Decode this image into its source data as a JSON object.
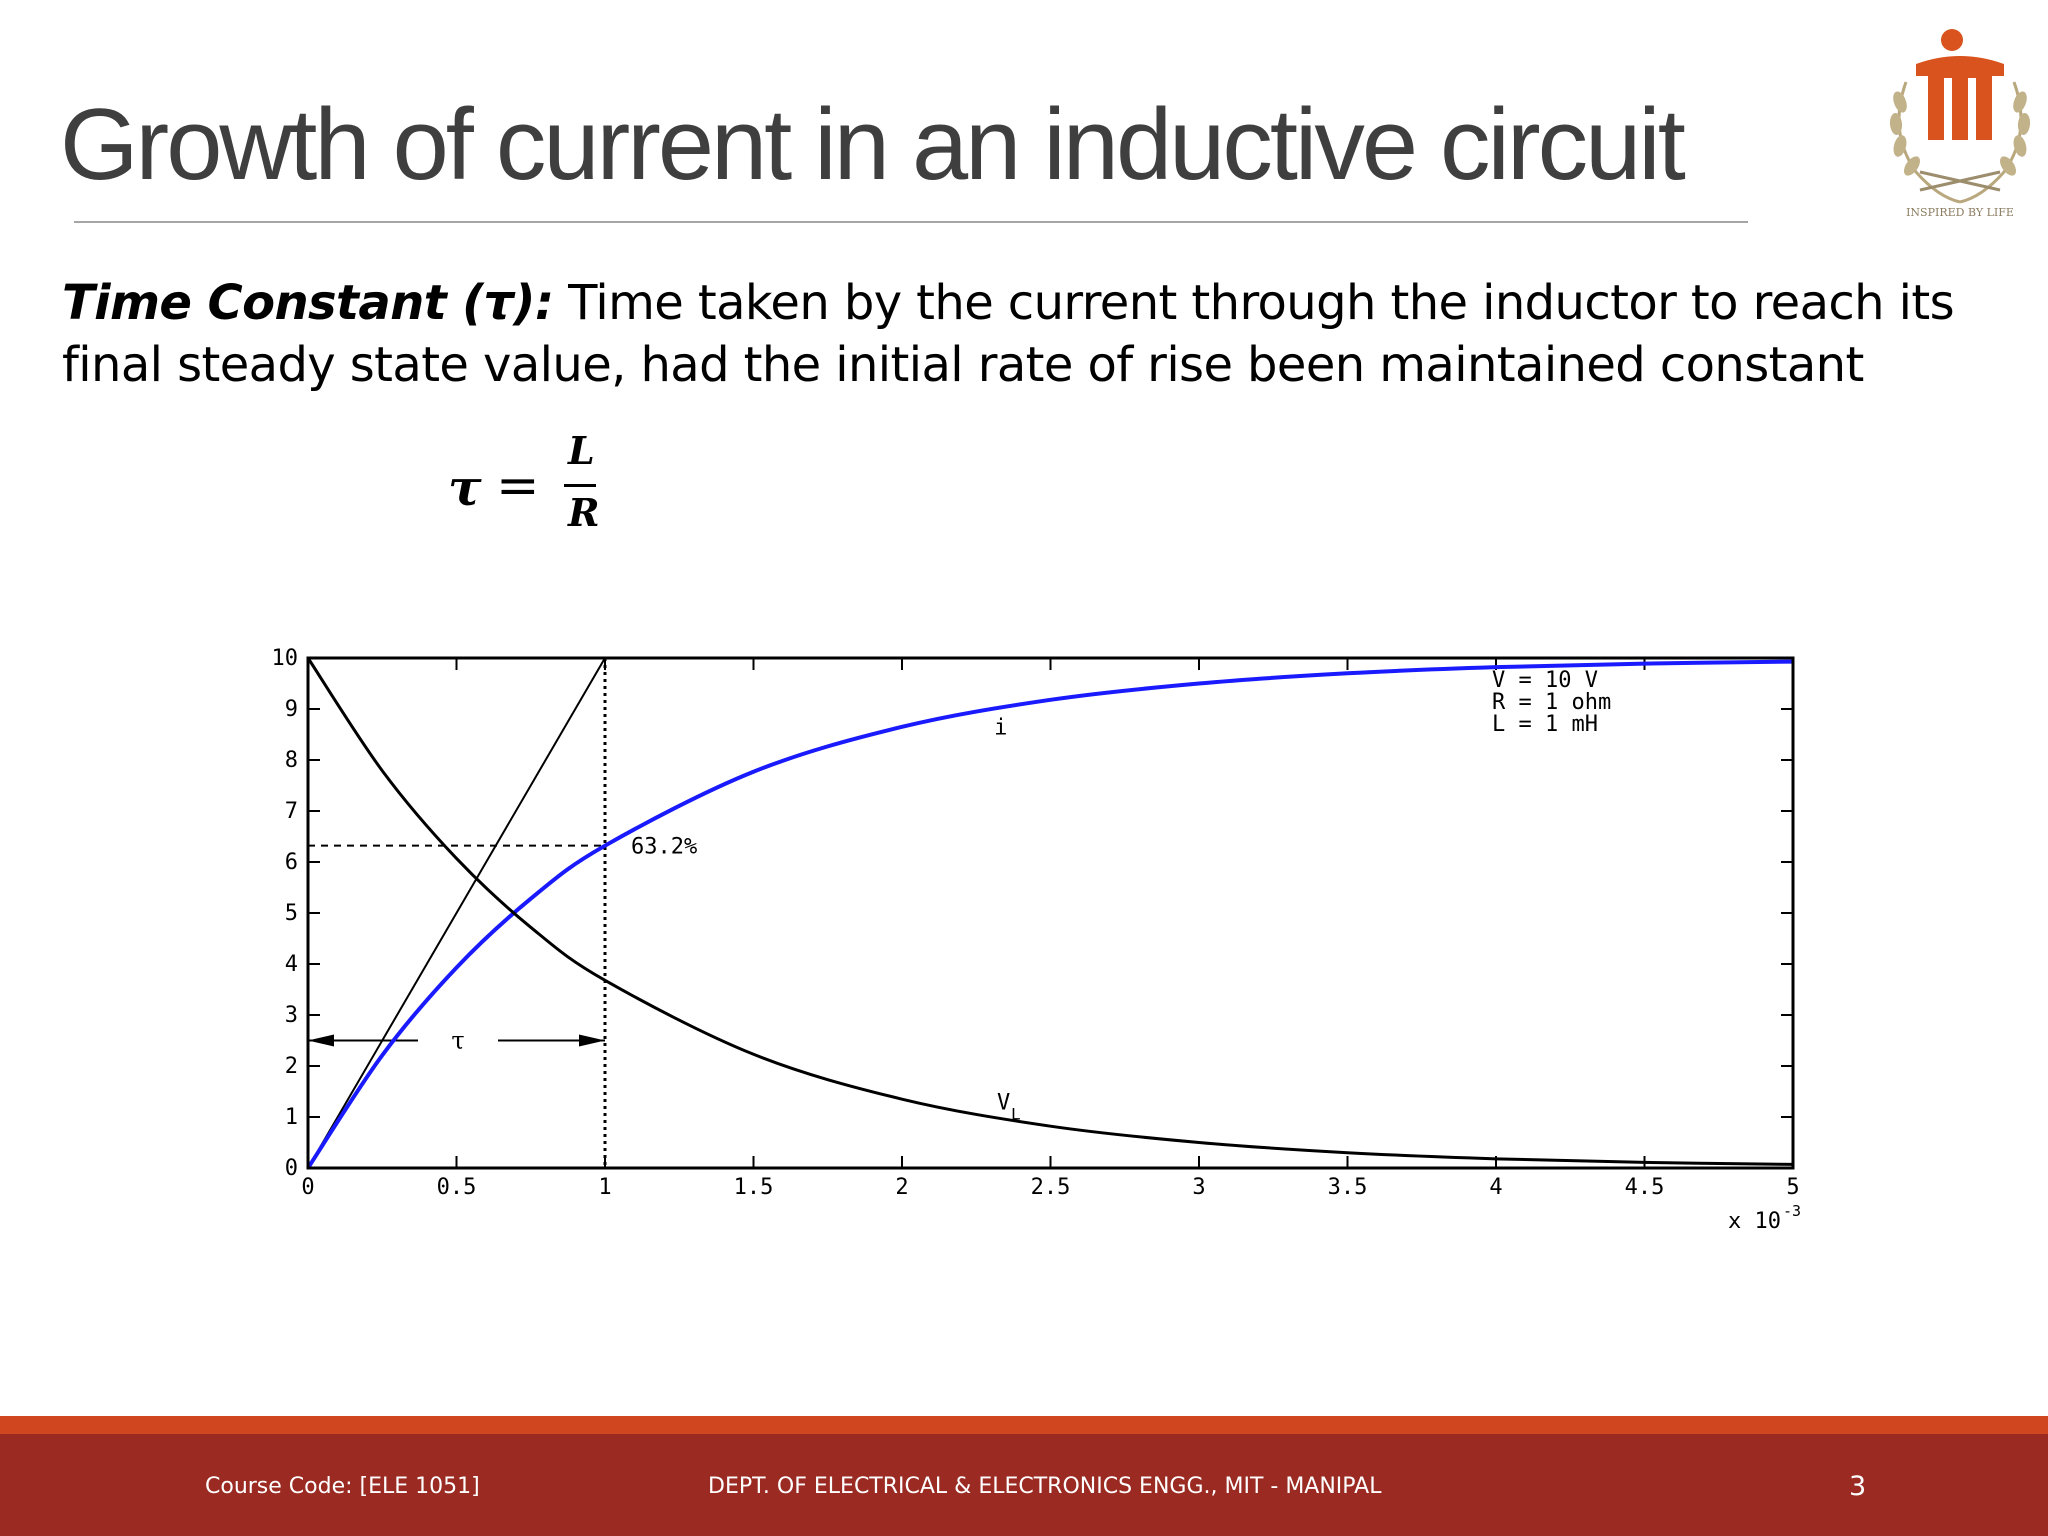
{
  "slide": {
    "title": "Growth of current in an inductive circuit",
    "definition_term": "Time Constant (τ):",
    "definition_text": "Time taken by the current through the inductor to reach its final steady state value, had the initial rate of rise been maintained constant",
    "formula": {
      "lhs": "τ",
      "eq": "=",
      "numerator": "L",
      "denominator": "R"
    }
  },
  "footer": {
    "course_code": "Course Code: [ELE 1051]",
    "department": "DEPT. OF ELECTRICAL & ELECTRONICS ENGG., MIT - MANIPAL",
    "page_number": "3"
  },
  "colors": {
    "footer_bar": "#9a2a22",
    "footer_stripe": "#d0461f",
    "title_text": "#3f3f3f",
    "current_curve": "#1a1aff",
    "logo": "#d9531e"
  },
  "logo": {
    "icon": "institution-crest-logo",
    "motto": "INSPIRED BY LIFE"
  },
  "chart_data": {
    "type": "line",
    "x_tick_labels": [
      "0",
      "0.5",
      "1",
      "1.5",
      "2",
      "2.5",
      "3",
      "3.5",
      "4",
      "4.5",
      "5"
    ],
    "x_ticks": [
      0,
      0.0005,
      0.001,
      0.0015,
      0.002,
      0.0025,
      0.003,
      0.0035,
      0.004,
      0.0045,
      0.005
    ],
    "y_tick_labels": [
      "0",
      "1",
      "2",
      "3",
      "4",
      "5",
      "6",
      "7",
      "8",
      "9",
      "10"
    ],
    "y_ticks": [
      0,
      1,
      2,
      3,
      4,
      5,
      6,
      7,
      8,
      9,
      10
    ],
    "xlim": [
      0,
      0.005
    ],
    "ylim": [
      0,
      10
    ],
    "x_multiplier": "x 10",
    "x_multiplier_exp": "-3",
    "grid": false,
    "parameters": [
      "V = 10 V",
      "R = 1 ohm",
      "L = 1 mH"
    ],
    "series": [
      {
        "name": "i",
        "color": "#1a1aff",
        "x": [
          0,
          0.00025,
          0.0005,
          0.00075,
          0.001,
          0.0015,
          0.002,
          0.0025,
          0.003,
          0.0035,
          0.004,
          0.0045,
          0.005
        ],
        "y": [
          0,
          2.21,
          3.93,
          5.28,
          6.32,
          7.77,
          8.65,
          9.18,
          9.5,
          9.7,
          9.82,
          9.89,
          9.93
        ]
      },
      {
        "name": "V",
        "subscript": "L",
        "color": "#000000",
        "x": [
          0,
          0.00025,
          0.0005,
          0.00075,
          0.001,
          0.0015,
          0.002,
          0.0025,
          0.003,
          0.0035,
          0.004,
          0.0045,
          0.005
        ],
        "y": [
          10,
          7.79,
          6.07,
          4.72,
          3.68,
          2.23,
          1.35,
          0.82,
          0.5,
          0.3,
          0.18,
          0.11,
          0.07
        ]
      }
    ],
    "tangent": {
      "x": [
        0,
        0.001
      ],
      "y": [
        0,
        10
      ]
    },
    "tau_x": 0.001,
    "annotation_percent": "63.2%",
    "annotation_level": 6.32,
    "tau_label": "τ",
    "tau_arrow_y": 2.5
  }
}
